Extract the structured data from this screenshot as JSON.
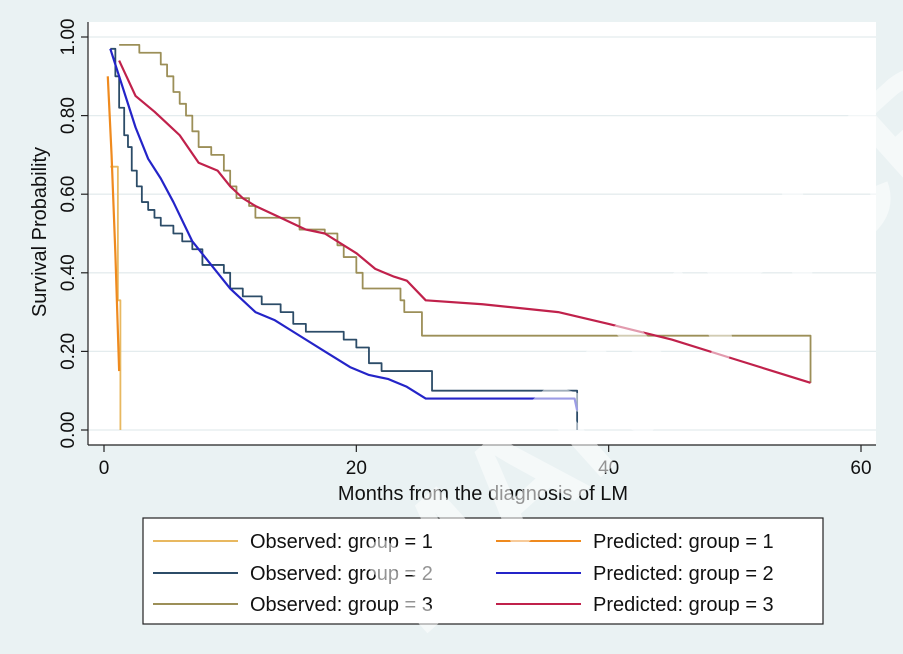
{
  "chart_data": {
    "type": "line",
    "title": "",
    "xlabel": "Months from the diagnosis of LM",
    "ylabel": "Survival Probability",
    "xlim": [
      -1,
      61
    ],
    "ylim": [
      0,
      1.03
    ],
    "x_ticks": [
      0,
      20,
      40,
      60
    ],
    "x_tick_labels": [
      "0",
      "20",
      "40",
      "60"
    ],
    "y_ticks": [
      0,
      0.2,
      0.4,
      0.6,
      0.8,
      1.0
    ],
    "y_tick_labels": [
      "0.00",
      "0.20",
      "0.40",
      "0.60",
      "0.80",
      "1.00"
    ],
    "grid": true,
    "legend_position": "bottom",
    "watermark": "MANUSCRIPT",
    "series": [
      {
        "name": "Observed: group = 1",
        "color": "#e8b860",
        "step": true,
        "points": [
          [
            0.5,
            0.67
          ],
          [
            1.1,
            0.67
          ],
          [
            1.1,
            0.33
          ],
          [
            1.3,
            0.33
          ],
          [
            1.3,
            0.0
          ]
        ]
      },
      {
        "name": "Predicted: group = 1",
        "color": "#ef8a1e",
        "step": false,
        "points": [
          [
            0.3,
            0.9
          ],
          [
            0.6,
            0.7
          ],
          [
            0.9,
            0.45
          ],
          [
            1.2,
            0.15
          ]
        ]
      },
      {
        "name": "Observed: group = 2",
        "color": "#2c4c68",
        "step": true,
        "points": [
          [
            0.5,
            0.97
          ],
          [
            0.9,
            0.9
          ],
          [
            1.2,
            0.82
          ],
          [
            1.6,
            0.75
          ],
          [
            1.9,
            0.72
          ],
          [
            2.2,
            0.66
          ],
          [
            2.6,
            0.62
          ],
          [
            3.0,
            0.58
          ],
          [
            3.5,
            0.56
          ],
          [
            4.0,
            0.54
          ],
          [
            4.5,
            0.52
          ],
          [
            5.5,
            0.5
          ],
          [
            6.2,
            0.48
          ],
          [
            7.0,
            0.46
          ],
          [
            7.8,
            0.42
          ],
          [
            9.0,
            0.42
          ],
          [
            9.5,
            0.4
          ],
          [
            10.0,
            0.36
          ],
          [
            11.0,
            0.34
          ],
          [
            12.5,
            0.32
          ],
          [
            14.0,
            0.3
          ],
          [
            15.0,
            0.27
          ],
          [
            16.0,
            0.25
          ],
          [
            19.0,
            0.23
          ],
          [
            20.0,
            0.21
          ],
          [
            21.0,
            0.17
          ],
          [
            22.0,
            0.15
          ],
          [
            26.0,
            0.1
          ],
          [
            37.5,
            0.1
          ],
          [
            37.5,
            0.0
          ]
        ]
      },
      {
        "name": "Predicted: group = 2",
        "color": "#2424c8",
        "step": false,
        "points": [
          [
            0.5,
            0.97
          ],
          [
            1.5,
            0.87
          ],
          [
            2.5,
            0.77
          ],
          [
            3.5,
            0.69
          ],
          [
            4.5,
            0.64
          ],
          [
            5.5,
            0.58
          ],
          [
            7.0,
            0.48
          ],
          [
            8.5,
            0.42
          ],
          [
            10.0,
            0.36
          ],
          [
            12.0,
            0.3
          ],
          [
            13.5,
            0.28
          ],
          [
            15.0,
            0.25
          ],
          [
            17.5,
            0.2
          ],
          [
            19.5,
            0.16
          ],
          [
            21.0,
            0.14
          ],
          [
            22.5,
            0.13
          ],
          [
            24.0,
            0.11
          ],
          [
            25.5,
            0.08
          ],
          [
            30.0,
            0.08
          ],
          [
            37.3,
            0.08
          ],
          [
            37.5,
            0.05
          ]
        ]
      },
      {
        "name": "Observed: group = 3",
        "color": "#9c8f58",
        "step": true,
        "points": [
          [
            1.2,
            0.98
          ],
          [
            2.8,
            0.98
          ],
          [
            2.8,
            0.96
          ],
          [
            4.2,
            0.96
          ],
          [
            4.5,
            0.93
          ],
          [
            5.0,
            0.9
          ],
          [
            5.5,
            0.86
          ],
          [
            6.0,
            0.83
          ],
          [
            6.5,
            0.8
          ],
          [
            7.0,
            0.76
          ],
          [
            7.5,
            0.72
          ],
          [
            8.5,
            0.7
          ],
          [
            9.5,
            0.66
          ],
          [
            10.0,
            0.62
          ],
          [
            10.5,
            0.59
          ],
          [
            11.5,
            0.57
          ],
          [
            12.0,
            0.54
          ],
          [
            15.0,
            0.54
          ],
          [
            15.5,
            0.51
          ],
          [
            17.5,
            0.5
          ],
          [
            18.5,
            0.47
          ],
          [
            19.0,
            0.44
          ],
          [
            20.0,
            0.4
          ],
          [
            20.5,
            0.36
          ],
          [
            23.5,
            0.33
          ],
          [
            23.8,
            0.3
          ],
          [
            25.2,
            0.24
          ],
          [
            56.0,
            0.24
          ],
          [
            56.0,
            0.12
          ]
        ]
      },
      {
        "name": "Predicted: group = 3",
        "color": "#c0214b",
        "step": false,
        "points": [
          [
            1.2,
            0.94
          ],
          [
            2.5,
            0.85
          ],
          [
            4.0,
            0.81
          ],
          [
            5.0,
            0.78
          ],
          [
            6.0,
            0.75
          ],
          [
            7.5,
            0.68
          ],
          [
            9.0,
            0.66
          ],
          [
            10.0,
            0.62
          ],
          [
            11.0,
            0.59
          ],
          [
            12.0,
            0.57
          ],
          [
            14.0,
            0.54
          ],
          [
            16.0,
            0.51
          ],
          [
            17.5,
            0.5
          ],
          [
            19.0,
            0.47
          ],
          [
            20.0,
            0.45
          ],
          [
            21.5,
            0.41
          ],
          [
            23.0,
            0.39
          ],
          [
            24.0,
            0.38
          ],
          [
            25.5,
            0.33
          ],
          [
            30.0,
            0.32
          ],
          [
            36.0,
            0.3
          ],
          [
            40.0,
            0.27
          ],
          [
            45.0,
            0.23
          ],
          [
            50.0,
            0.18
          ],
          [
            53.0,
            0.15
          ],
          [
            56.0,
            0.12
          ]
        ]
      }
    ]
  }
}
